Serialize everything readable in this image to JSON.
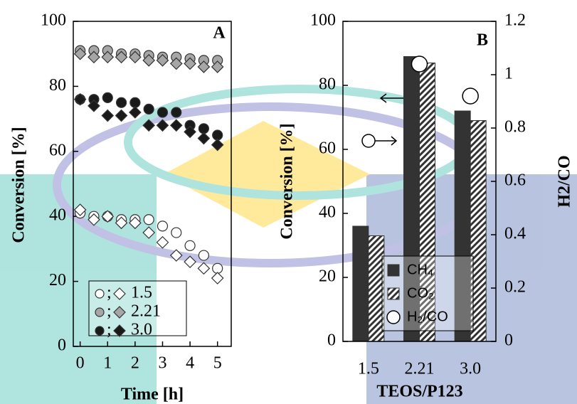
{
  "chart_data": [
    {
      "type": "scatter",
      "panel": "A",
      "x_label": "Time [h]",
      "y_label": "Conversion [%]",
      "x": [
        0,
        0.5,
        1,
        1.5,
        2,
        2.5,
        3,
        3.5,
        4,
        4.5,
        5
      ],
      "xlim": [
        -0.25,
        5.5
      ],
      "xticks": [
        0,
        1,
        2,
        3,
        4,
        5
      ],
      "ylim": [
        0,
        100
      ],
      "yticks": [
        0,
        20,
        40,
        60,
        80,
        100
      ],
      "legend_separator": ";",
      "series": [
        {
          "name": "1.5",
          "color": "#ffffff",
          "values": [
            41,
            40,
            40,
            39,
            39,
            39,
            37,
            35,
            31,
            28,
            24
          ],
          "values2": [
            42,
            39,
            40,
            38,
            38,
            35,
            32,
            28,
            26,
            24,
            21
          ]
        },
        {
          "name": "2.21",
          "color": "#a6a6a6",
          "values": [
            91,
            91,
            91,
            90,
            90,
            89.5,
            89,
            89,
            88.5,
            88,
            88
          ],
          "values2": [
            90,
            89,
            89,
            89,
            89,
            88,
            88,
            87,
            87,
            86,
            86
          ]
        },
        {
          "name": "3.0",
          "color": "#1a1a1a",
          "values": [
            76,
            76,
            76.5,
            75,
            75,
            73,
            72,
            72,
            68,
            67,
            65
          ],
          "values2": [
            76,
            74,
            71,
            71,
            72,
            68,
            68,
            68,
            66,
            64,
            62
          ]
        }
      ]
    },
    {
      "type": "bar",
      "panel": "B",
      "x_label": "TEOS/P123",
      "y_label": "Conversion [%]",
      "y2_label": "H2/CO",
      "categories": [
        "1.5",
        "2.21",
        "3.0"
      ],
      "ylim": [
        0,
        100
      ],
      "yticks": [
        0,
        20,
        40,
        60,
        80,
        100
      ],
      "y2lim": [
        0,
        1.2
      ],
      "y2ticks": [
        0,
        0.2,
        0.4,
        0.6,
        0.8,
        1,
        1.2
      ],
      "series": [
        {
          "name": "CH₄",
          "color": "#333333",
          "values": [
            36,
            89,
            72
          ]
        },
        {
          "name": "CO₂",
          "color": "#333333",
          "hatch": true,
          "values": [
            33,
            87,
            69
          ]
        },
        {
          "name": "H₂/CO",
          "color": "#ffffff",
          "marker": "circle",
          "axis": "y2",
          "values": [
            null,
            1.04,
            0.92
          ]
        }
      ]
    }
  ]
}
